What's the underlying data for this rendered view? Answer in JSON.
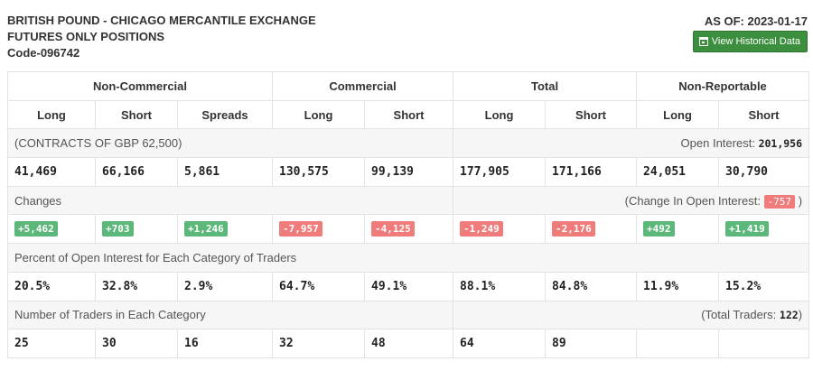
{
  "header": {
    "title_line1": "BRITISH POUND - CHICAGO MERCANTILE EXCHANGE",
    "title_line2": "FUTURES ONLY POSITIONS",
    "code": "Code-096742",
    "as_of": "AS OF: 2023-01-17",
    "history_button": "View Historical Data"
  },
  "groups": {
    "non_commercial": "Non-Commercial",
    "commercial": "Commercial",
    "total": "Total",
    "non_reportable": "Non-Reportable"
  },
  "columns": [
    "Long",
    "Short",
    "Spreads",
    "Long",
    "Short",
    "Long",
    "Short",
    "Long",
    "Short"
  ],
  "contracts": {
    "label": "(CONTRACTS OF GBP 62,500)",
    "open_interest_label": "Open Interest:",
    "open_interest_value": "201,956",
    "values": [
      "41,469",
      "66,166",
      "5,861",
      "130,575",
      "99,139",
      "177,905",
      "171,166",
      "24,051",
      "30,790"
    ]
  },
  "changes": {
    "label": "Changes",
    "change_oi_prefix": "(Change In Open Interest:",
    "change_oi_value": "-757",
    "change_oi_suffix": ")",
    "values": [
      "+5,462",
      "+703",
      "+1,246",
      "-7,957",
      "-4,125",
      "-1,249",
      "-2,176",
      "+492",
      "+1,419"
    ],
    "colors": {
      "positive": "#5cb87a",
      "negative": "#f07b7b"
    }
  },
  "percent": {
    "label": "Percent of Open Interest for Each Category of Traders",
    "values": [
      "20.5%",
      "32.8%",
      "2.9%",
      "64.7%",
      "49.1%",
      "88.1%",
      "84.8%",
      "11.9%",
      "15.2%"
    ]
  },
  "traders": {
    "label": "Number of Traders in Each Category",
    "total_prefix": "(Total Traders:",
    "total_value": "122",
    "total_suffix": ")",
    "values": [
      "25",
      "30",
      "16",
      "32",
      "48",
      "64",
      "89",
      "",
      ""
    ]
  },
  "accent_color": "#3c8f3e"
}
